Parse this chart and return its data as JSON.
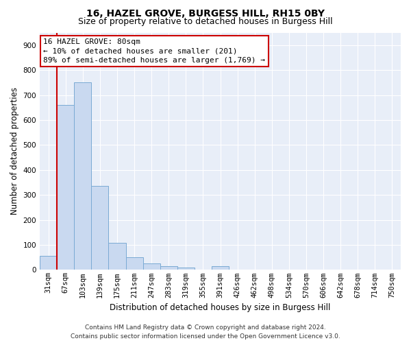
{
  "title1": "16, HAZEL GROVE, BURGESS HILL, RH15 0BY",
  "title2": "Size of property relative to detached houses in Burgess Hill",
  "xlabel": "Distribution of detached houses by size in Burgess Hill",
  "ylabel": "Number of detached properties",
  "categories": [
    "31sqm",
    "67sqm",
    "103sqm",
    "139sqm",
    "175sqm",
    "211sqm",
    "247sqm",
    "283sqm",
    "319sqm",
    "355sqm",
    "391sqm",
    "426sqm",
    "462sqm",
    "498sqm",
    "534sqm",
    "570sqm",
    "606sqm",
    "642sqm",
    "678sqm",
    "714sqm",
    "750sqm"
  ],
  "values": [
    55,
    660,
    750,
    335,
    107,
    50,
    25,
    15,
    10,
    0,
    15,
    0,
    0,
    0,
    0,
    0,
    0,
    0,
    0,
    0,
    0
  ],
  "bar_color": "#c9d9f0",
  "bar_edge_color": "#7aaad4",
  "subject_line_color": "#cc0000",
  "annotation_line1": "16 HAZEL GROVE: 80sqm",
  "annotation_line2": "← 10% of detached houses are smaller (201)",
  "annotation_line3": "89% of semi-detached houses are larger (1,769) →",
  "annotation_box_color": "#cc0000",
  "background_color": "#e8eef8",
  "ylim": [
    0,
    950
  ],
  "yticks": [
    0,
    100,
    200,
    300,
    400,
    500,
    600,
    700,
    800,
    900
  ],
  "footer1": "Contains HM Land Registry data © Crown copyright and database right 2024.",
  "footer2": "Contains public sector information licensed under the Open Government Licence v3.0.",
  "title1_fontsize": 10,
  "title2_fontsize": 9,
  "xlabel_fontsize": 8.5,
  "ylabel_fontsize": 8.5,
  "tick_fontsize": 7.5,
  "annotation_fontsize": 8,
  "footer_fontsize": 6.5
}
